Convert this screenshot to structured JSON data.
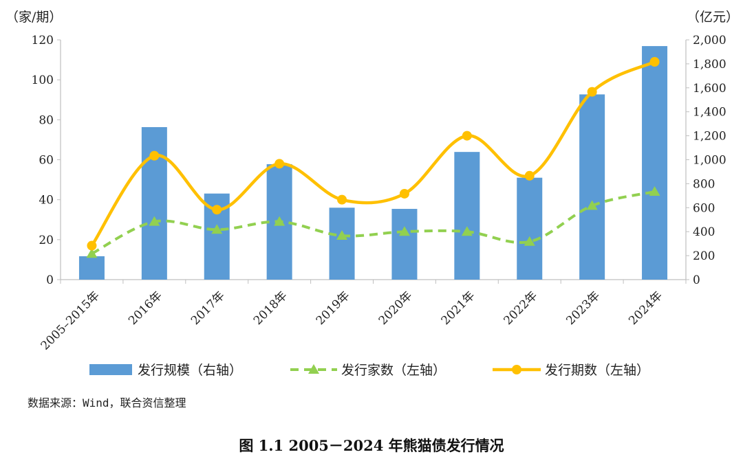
{
  "chart_data": {
    "type": "bar",
    "categories": [
      "2005–2015年",
      "2016年",
      "2017年",
      "2018年",
      "2019年",
      "2020年",
      "2021年",
      "2022年",
      "2023年",
      "2024年"
    ],
    "series": [
      {
        "name": "发行规模（右轴）",
        "kind": "bar",
        "axis": "right",
        "values": [
          195,
          1272,
          718,
          963,
          600,
          590,
          1065,
          850,
          1545,
          1948
        ]
      },
      {
        "name": "发行家数（左轴）",
        "kind": "line-dashed",
        "axis": "left",
        "values": [
          13,
          29,
          25,
          29,
          22,
          24,
          24,
          19,
          37,
          44
        ]
      },
      {
        "name": "发行期数（左轴）",
        "kind": "line-smooth",
        "axis": "left",
        "values": [
          17,
          62,
          35,
          58,
          40,
          43,
          72,
          52,
          94,
          109
        ]
      }
    ],
    "left_axis": {
      "unit": "（家/期）",
      "range": [
        0,
        120
      ],
      "ticks": [
        "0",
        "20",
        "40",
        "60",
        "80",
        "100",
        "120"
      ]
    },
    "right_axis": {
      "unit": "（亿元）",
      "range": [
        0,
        2000
      ],
      "ticks": [
        "0",
        "200",
        "400",
        "600",
        "800",
        "1,000",
        "1,200",
        "1,400",
        "1,600",
        "1,800",
        "2,000"
      ]
    },
    "grid": false,
    "legend_position": "bottom",
    "colors": {
      "bar": "#5b9bd5",
      "families_line": "#92d050",
      "periods_line": "#ffc000",
      "axis": "#bfbfbf"
    }
  },
  "source": "数据来源：Wind，联合资信整理",
  "caption": "图 1.1    2005－2024 年熊猫债发行情况"
}
